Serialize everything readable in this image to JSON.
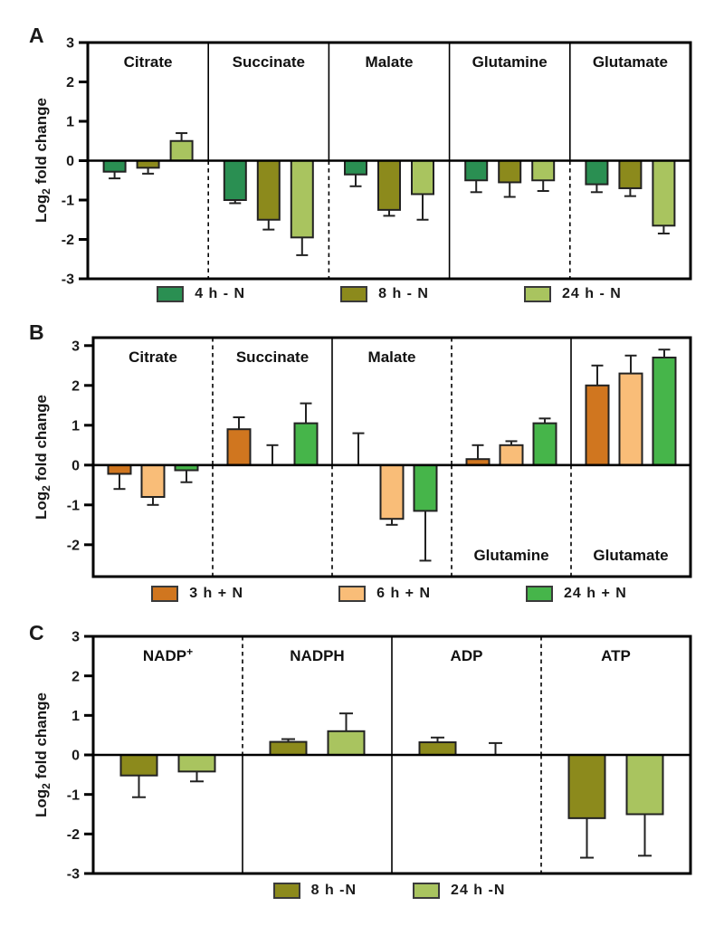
{
  "figure": {
    "background": "#ffffff",
    "ylabel": {
      "prefix": "Log",
      "sub": "2",
      "suffix": " fold change"
    },
    "bar_outline_color": "#222222",
    "axis_color": "#000000"
  },
  "chart_data": [
    {
      "type": "bar",
      "panel_label": "A",
      "ylabel": "Log2 fold change",
      "ylim": [
        -3,
        3
      ],
      "yticks": [
        3,
        2,
        1,
        0,
        -1,
        -2,
        -3
      ],
      "grid": false,
      "legend_position": "bottom",
      "categories": [
        "Citrate",
        "Succinate",
        "Malate",
        "Glutamine",
        "Glutamate"
      ],
      "category_label_positions": [
        "top",
        "top",
        "top",
        "top",
        "top"
      ],
      "series": [
        {
          "name": "4 h - N",
          "color": "#2a8f52",
          "values": [
            -0.28,
            -1.0,
            -0.35,
            -0.5,
            -0.6
          ],
          "errors": [
            0.17,
            0.08,
            0.3,
            0.3,
            0.2
          ]
        },
        {
          "name": "8 h - N",
          "color": "#8c8a1c",
          "values": [
            -0.18,
            -1.5,
            -1.25,
            -0.55,
            -0.7
          ],
          "errors": [
            0.15,
            0.25,
            0.15,
            0.37,
            0.2
          ]
        },
        {
          "name": "24 h - N",
          "color": "#a9c45f",
          "values": [
            0.5,
            -1.95,
            -0.85,
            -0.5,
            -1.65
          ],
          "errors": [
            0.2,
            0.45,
            0.65,
            0.27,
            0.2
          ]
        }
      ],
      "separators": [
        {
          "above_zero": "solid",
          "below_zero": "dashed"
        },
        {
          "above_zero": "solid",
          "below_zero": "dashed"
        },
        {
          "above_zero": "solid",
          "below_zero": "solid"
        },
        {
          "above_zero": "solid",
          "below_zero": "dashed"
        }
      ]
    },
    {
      "type": "bar",
      "panel_label": "B",
      "ylabel": "Log2 fold change",
      "ylim": [
        -2.8,
        3.2
      ],
      "yticks": [
        3,
        2,
        1,
        0,
        -1,
        -2
      ],
      "grid": false,
      "legend_position": "bottom",
      "categories": [
        "Citrate",
        "Succinate",
        "Malate",
        "Glutamine",
        "Glutamate"
      ],
      "category_label_positions": [
        "top",
        "top",
        "top",
        "bottom",
        "bottom"
      ],
      "series": [
        {
          "name": "3 h + N",
          "color": "#d0761f",
          "values": [
            -0.22,
            0.9,
            0.0,
            0.15,
            2.0
          ],
          "errors": [
            0.38,
            0.3,
            0.8,
            0.35,
            0.5
          ]
        },
        {
          "name": "6 h + N",
          "color": "#f9bd78",
          "values": [
            -0.8,
            0.0,
            -1.35,
            0.5,
            2.3
          ],
          "errors": [
            0.2,
            0.5,
            0.15,
            0.1,
            0.45
          ]
        },
        {
          "name": "24 h + N",
          "color": "#46b54a",
          "values": [
            -0.13,
            1.05,
            -1.15,
            1.05,
            2.7
          ],
          "errors": [
            0.3,
            0.5,
            1.25,
            0.12,
            0.2
          ]
        }
      ],
      "separators": [
        {
          "above_zero": "dashed",
          "below_zero": "dashed"
        },
        {
          "above_zero": "solid",
          "below_zero": "dashed"
        },
        {
          "above_zero": "dashed",
          "below_zero": "dashed"
        },
        {
          "above_zero": "solid",
          "below_zero": "dashed"
        }
      ]
    },
    {
      "type": "bar",
      "panel_label": "C",
      "ylabel": "Log2 fold change",
      "ylim": [
        -3,
        3
      ],
      "yticks": [
        3,
        2,
        1,
        0,
        -1,
        -2,
        -3
      ],
      "grid": false,
      "legend_position": "bottom",
      "categories": [
        "NADP+",
        "NADPH",
        "ADP",
        "ATP"
      ],
      "category_label_positions": [
        "top",
        "top",
        "top",
        "top"
      ],
      "series": [
        {
          "name": "8 h -N",
          "color": "#8c8a1c",
          "values": [
            -0.52,
            0.33,
            0.32,
            -1.6
          ],
          "errors": [
            0.55,
            0.07,
            0.12,
            1.0
          ]
        },
        {
          "name": "24 h -N",
          "color": "#a9c45f",
          "values": [
            -0.42,
            0.6,
            0.0,
            -1.5
          ],
          "errors": [
            0.25,
            0.45,
            0.3,
            1.05
          ]
        }
      ],
      "separators": [
        {
          "above_zero": "dashed",
          "below_zero": "solid"
        },
        {
          "above_zero": "solid",
          "below_zero": "solid"
        },
        {
          "above_zero": "dashed",
          "below_zero": "dashed"
        }
      ]
    }
  ]
}
